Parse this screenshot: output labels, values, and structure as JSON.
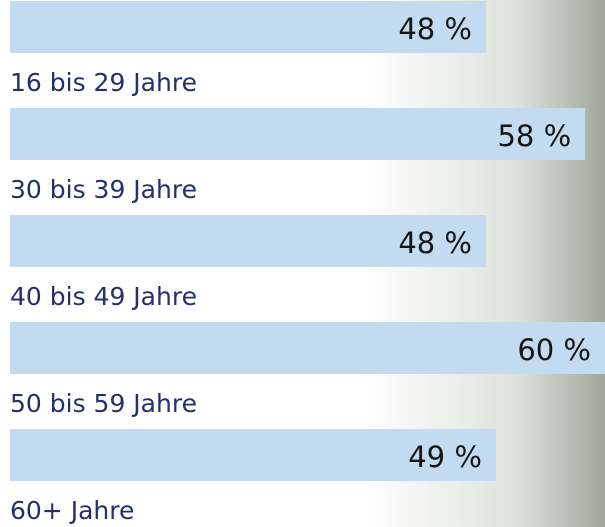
{
  "chart_data": {
    "type": "bar",
    "orientation": "horizontal",
    "categories": [
      "16 bis 29 Jahre",
      "30 bis 39 Jahre",
      "40 bis 49 Jahre",
      "50 bis 59 Jahre",
      "60+ Jahre"
    ],
    "values": [
      48,
      58,
      48,
      60,
      49
    ],
    "value_labels": [
      "48 %",
      "58 %",
      "48 %",
      "60 %",
      "49 %"
    ],
    "color": "#c3dbf1"
  }
}
